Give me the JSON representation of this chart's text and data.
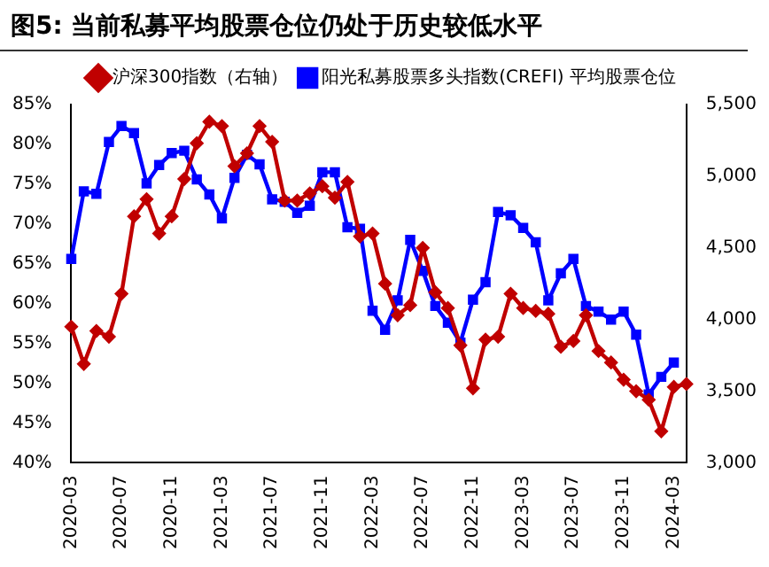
{
  "chart_data": {
    "type": "line",
    "title": "图5: 当前私募平均股票仓位仍处于历史较低水平",
    "categories": [
      "2020-03",
      null,
      null,
      null,
      "2020-07",
      null,
      null,
      null,
      "2020-11",
      null,
      null,
      null,
      "2021-03",
      null,
      null,
      null,
      "2021-07",
      null,
      null,
      null,
      "2021-11",
      null,
      null,
      null,
      "2022-03",
      null,
      null,
      null,
      "2022-07",
      null,
      null,
      null,
      "2022-11",
      null,
      null,
      null,
      "2023-03",
      null,
      null,
      null,
      "2023-07",
      null,
      null,
      null,
      "2023-11",
      null,
      null,
      null,
      "2024-03",
      null
    ],
    "series": [
      {
        "name": "阳光私募股票多头指数(CREFI) 平均股票仓位",
        "color": "#0000ff",
        "marker": "square",
        "values": [
          65.6,
          74.1,
          73.8,
          80.3,
          82.3,
          81.4,
          75.1,
          77.4,
          78.9,
          79.2,
          75.6,
          73.7,
          70.7,
          75.8,
          78.7,
          77.5,
          73.1,
          72.8,
          71.4,
          72.3,
          76.5,
          76.5,
          69.6,
          69.4,
          59.1,
          56.7,
          60.4,
          68.0,
          64.1,
          59.7,
          57.6,
          55.1,
          60.5,
          62.7,
          71.5,
          71.1,
          69.5,
          67.7,
          60.4,
          63.8,
          65.6,
          59.7,
          59.0,
          58.0,
          59.0,
          56.1,
          48.6,
          50.8,
          52.6,
          null
        ]
      },
      {
        "name": "沪深300指数（右轴）",
        "color": "#c00000",
        "marker": "diamond",
        "axis": "y2",
        "values": [
          3950,
          3690,
          3920,
          3880,
          4180,
          4720,
          4840,
          4600,
          4720,
          4980,
          5230,
          5380,
          5350,
          5070,
          5160,
          5350,
          5240,
          4830,
          4830,
          4880,
          4930,
          4850,
          4960,
          4580,
          4600,
          4250,
          4030,
          4100,
          4500,
          4190,
          4080,
          3820,
          3520,
          3860,
          3880,
          4180,
          4080,
          4060,
          4040,
          3810,
          3850,
          4030,
          3780,
          3700,
          3580,
          3500,
          3440,
          3220,
          3530,
          3550
        ]
      }
    ],
    "ylim": [
      40,
      85
    ],
    "yticks": [
      {
        "value": 40,
        "label": "40%"
      },
      {
        "value": 45,
        "label": "45%"
      },
      {
        "value": 50,
        "label": "50%"
      },
      {
        "value": 55,
        "label": "55%"
      },
      {
        "value": 60,
        "label": "60%"
      },
      {
        "value": 65,
        "label": "65%"
      },
      {
        "value": 70,
        "label": "70%"
      },
      {
        "value": 75,
        "label": "75%"
      },
      {
        "value": 80,
        "label": "80%"
      },
      {
        "value": 85,
        "label": "85%"
      }
    ],
    "y2lim": [
      3000,
      5500
    ],
    "y2ticks": [
      {
        "value": 3000,
        "label": "3,000"
      },
      {
        "value": 3500,
        "label": "3,500"
      },
      {
        "value": 4000,
        "label": "4,000"
      },
      {
        "value": 4500,
        "label": "4,500"
      },
      {
        "value": 5000,
        "label": "5,000"
      },
      {
        "value": 5500,
        "label": "5,500"
      }
    ],
    "grid": false,
    "legend": "top",
    "line_style": "solid"
  }
}
